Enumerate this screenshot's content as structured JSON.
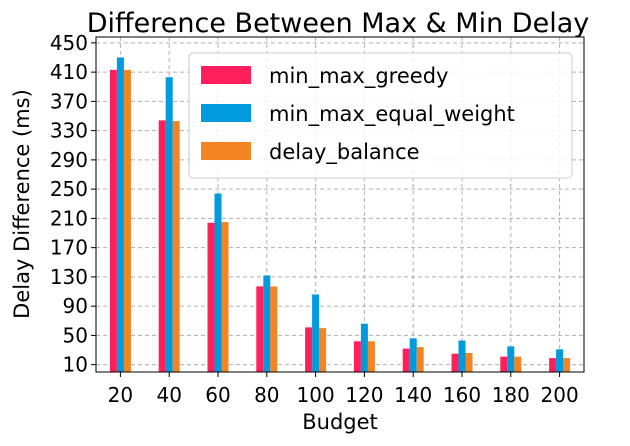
{
  "chart_data": {
    "type": "bar",
    "title": "Difference Between Max & Min Delay",
    "xlabel": "Budget",
    "ylabel": "Delay Difference (ms)",
    "categories": [
      "20",
      "40",
      "60",
      "80",
      "100",
      "120",
      "140",
      "160",
      "180",
      "200"
    ],
    "series": [
      {
        "name": "min_max_greedy",
        "color": "#FF1F5B",
        "values": [
          413,
          344,
          204,
          117,
          61,
          42,
          32,
          25,
          21,
          19
        ]
      },
      {
        "name": "min_max_equal_weight",
        "color": "#009ADE",
        "values": [
          430,
          403,
          244,
          132,
          106,
          66,
          46,
          43,
          35,
          31
        ]
      },
      {
        "name": "delay_balance",
        "color": "#F28522",
        "values": [
          413,
          343,
          205,
          117,
          60,
          42,
          34,
          26,
          21,
          19
        ]
      }
    ],
    "yticks": [
      10,
      50,
      90,
      130,
      170,
      210,
      250,
      290,
      330,
      370,
      410,
      450
    ],
    "ylim": [
      0,
      458
    ],
    "grid": true,
    "legend_position": "top-right"
  }
}
